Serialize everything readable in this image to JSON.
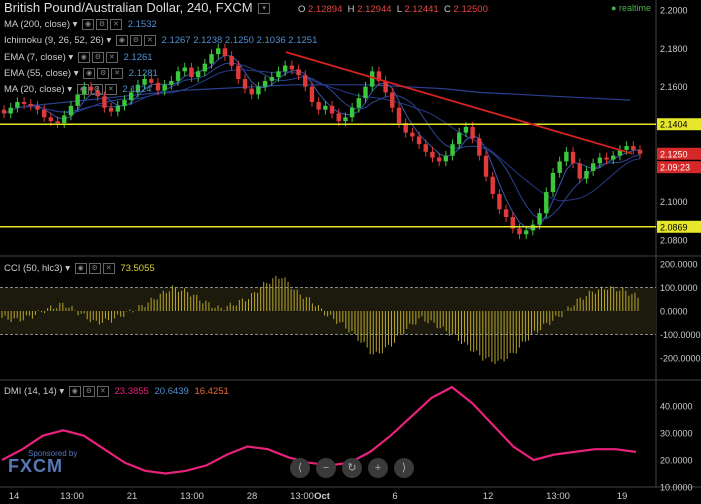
{
  "header": {
    "title": "British Pound/Australian Dollar, 240, FXCM",
    "ohlc": {
      "O": "2.12894",
      "H": "2.12944",
      "L": "2.12441",
      "C": "2.12500"
    },
    "realtime": "realtime"
  },
  "indicators": [
    {
      "label": "MA (200, close)",
      "value": "2.1532",
      "color": "#4f8fd0"
    },
    {
      "label": "Ichimoku (9, 26, 52, 26)",
      "value": "2.1267  2.1238  2.1250  2.1036  2.1251",
      "color": "#4f8fd0"
    },
    {
      "label": "EMA (7, close)",
      "value": "2.1261",
      "color": "#4f8fd0"
    },
    {
      "label": "EMA (55, close)",
      "value": "2.1281",
      "color": "#4f8fd0"
    },
    {
      "label": "MA (20, close)",
      "value": "2.1224",
      "color": "#4f8fd0"
    }
  ],
  "price_axis": [
    "2.2000",
    "2.1800",
    "2.1600",
    "2.1404",
    "2.1250",
    "2.09:23",
    "2.1000",
    "2.0869",
    "2.0800"
  ],
  "cci": {
    "label": "CCI (50, hlc3)",
    "value": "73.5055",
    "axis": [
      "200.0000",
      "100.0000",
      "0.0000",
      "-100.0000",
      "-200.0000"
    ]
  },
  "dmi": {
    "label": "DMI (14, 14)",
    "values": [
      "23.3855",
      "20.6439",
      "16.4251"
    ],
    "colors": [
      "#e8227a",
      "#4f8fd0",
      "#e8692a"
    ],
    "axis": [
      "40.0000",
      "30.0000",
      "20.0000",
      "10.0000"
    ]
  },
  "time_axis": [
    "14",
    "13:00",
    "21",
    "13:00",
    "28",
    "13:00",
    "Oct",
    "6",
    "12",
    "13:00",
    "19"
  ],
  "watermark": {
    "small": "Sponsored by",
    "brand": "FXCM"
  },
  "nav_buttons": [
    "⟨",
    "−",
    "↻",
    "+",
    "⟩"
  ],
  "chart_data": {
    "type": "line",
    "title": "British Pound/Australian Dollar, 240, FXCM",
    "price_levels": {
      "resistance": 2.1404,
      "support": 2.0869,
      "last": 2.125
    },
    "price_series": [
      2.146,
      2.149,
      2.152,
      2.151,
      2.15,
      2.148,
      2.144,
      2.142,
      2.141,
      2.145,
      2.15,
      2.156,
      2.16,
      2.158,
      2.155,
      2.149,
      2.147,
      2.15,
      2.153,
      2.157,
      2.161,
      2.164,
      2.162,
      2.158,
      2.161,
      2.163,
      2.168,
      2.17,
      2.165,
      2.168,
      2.172,
      2.177,
      2.18,
      2.176,
      2.171,
      2.164,
      2.159,
      2.156,
      2.16,
      2.163,
      2.165,
      2.168,
      2.171,
      2.169,
      2.166,
      2.16,
      2.152,
      2.148,
      2.15,
      2.146,
      2.142,
      2.144,
      2.149,
      2.154,
      2.16,
      2.168,
      2.163,
      2.157,
      2.149,
      2.141,
      2.136,
      2.134,
      2.13,
      2.126,
      2.123,
      2.121,
      2.124,
      2.13,
      2.136,
      2.139,
      2.133,
      2.124,
      2.113,
      2.104,
      2.096,
      2.092,
      2.086,
      2.083,
      2.085,
      2.088,
      2.094,
      2.105,
      2.115,
      2.121,
      2.126,
      2.12,
      2.112,
      2.116,
      2.12,
      2.123,
      2.122,
      2.124,
      2.127,
      2.129,
      2.127,
      2.125
    ],
    "ma200": [
      2.15,
      2.152,
      2.154,
      2.156,
      2.158,
      2.159,
      2.16,
      2.161,
      2.161,
      2.161,
      2.16,
      2.159,
      2.157,
      2.156,
      2.155,
      2.154,
      2.153
    ],
    "trendline": {
      "from": 2.178,
      "to": 2.1251
    },
    "cci_series": [
      -30,
      -40,
      -20,
      10,
      30,
      -10,
      -50,
      -40,
      -10,
      20,
      60,
      100,
      80,
      40,
      10,
      30,
      60,
      120,
      150,
      80,
      40,
      -20,
      -60,
      -120,
      -190,
      -150,
      -80,
      -30,
      -60,
      -100,
      -150,
      -200,
      -220,
      -180,
      -110,
      -60,
      -20,
      40,
      80,
      100,
      90,
      60
    ],
    "dmi_series": [
      20,
      24,
      29,
      31,
      29,
      24,
      19,
      16,
      15,
      16,
      18,
      22,
      25,
      24,
      21,
      19,
      18,
      19,
      23,
      29,
      36,
      43,
      47,
      41,
      33,
      25,
      20,
      22,
      23,
      24,
      24,
      23
    ]
  }
}
